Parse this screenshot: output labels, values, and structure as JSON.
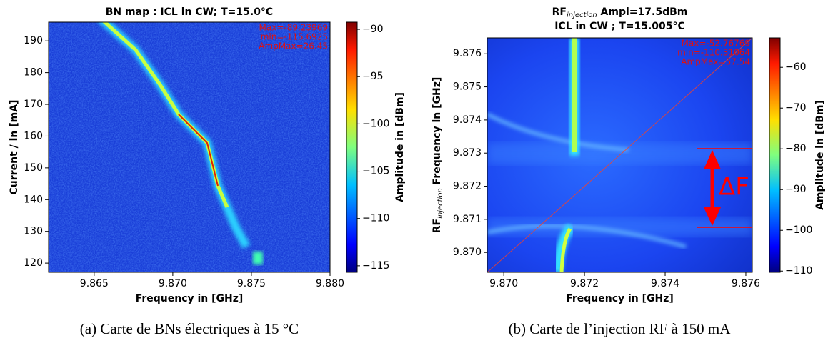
{
  "chart_data": [
    {
      "type": "heatmap",
      "title": "BN map : ICL in CW; T=15.0°C",
      "xlabel": "Frequency in [GHz]",
      "ylabel": "Current / in [mA]",
      "clabel": "Amplitude in [dBm]",
      "xlim": [
        9.8621,
        9.88
      ],
      "ylim": [
        117.1,
        195.9
      ],
      "xticks": [
        9.865,
        {
          "value": 9.87,
          "label": "9.870"
        },
        9.875,
        {
          "value": 9.88,
          "label": "9.880"
        }
      ],
      "yticks": [
        120,
        130,
        140,
        150,
        160,
        170,
        180,
        190
      ],
      "clim": [
        -115.69,
        -89.24
      ],
      "cticks": [
        {
          "value": -90,
          "label": "−90"
        },
        {
          "value": -95,
          "label": "−95"
        },
        {
          "value": -100,
          "label": "−100"
        },
        {
          "value": -105,
          "label": "−105"
        },
        {
          "value": -110,
          "label": "−110"
        },
        {
          "value": -115,
          "label": "−115"
        }
      ],
      "colormap": "jet",
      "annotations": [
        "Max=-89.23969",
        "min=-115.6925",
        "AmpMax=26.45"
      ]
    },
    {
      "type": "heatmap",
      "title": [
        "RF",
        "injection",
        " Ampl=17.5dBm"
      ],
      "subtitle": "ICL in CW ; T=15.005°C",
      "xlabel": "Frequency in [GHz]",
      "ylabel": [
        "RF",
        "injection",
        " Frequency in [GHz]"
      ],
      "clabel": "Amplitude in [dBm]",
      "xlim": [
        9.86959,
        9.87616
      ],
      "ylim": [
        9.8694,
        9.87648
      ],
      "xticks": [
        {
          "value": 9.87,
          "label": "9.870"
        },
        9.872,
        9.874,
        9.876
      ],
      "yticks": [
        {
          "value": 9.87,
          "label": "9.870"
        },
        9.871,
        9.872,
        9.873,
        9.874,
        9.875,
        9.876
      ],
      "clim": [
        -110.31,
        -52.77
      ],
      "cticks": [
        {
          "value": -60,
          "label": "−60"
        },
        {
          "value": -70,
          "label": "−70"
        },
        {
          "value": -80,
          "label": "−80"
        },
        {
          "value": -90,
          "label": "−90"
        },
        {
          "value": -100,
          "label": "−100"
        },
        {
          "value": -110,
          "label": "−110"
        }
      ],
      "colormap": "jet",
      "annotations": [
        "Max=-52.76769",
        "min=-110.31064",
        "AmpMax=57.54",
        "ΔF"
      ]
    }
  ],
  "captions": [
    "(a) Carte de BNs électriques à 15 °C",
    "(b) Carte de l’injection RF à 150 mA"
  ]
}
